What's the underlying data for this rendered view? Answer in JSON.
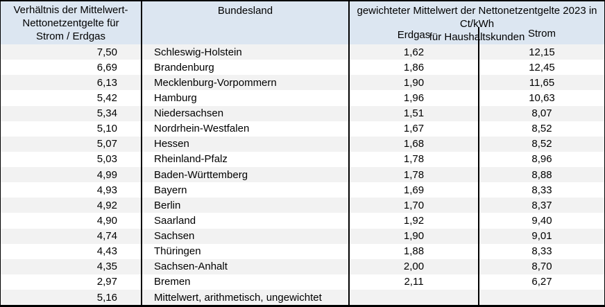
{
  "colors": {
    "header_bg": "#dce6f1",
    "stripe_bg": "#f2f2f2",
    "border": "#000000",
    "text": "#000000"
  },
  "header": {
    "ratio_lines": [
      "Verhältnis der Mittelwert-",
      "Nettonetzentgelte für",
      "Strom / Erdgas"
    ],
    "bundesland": "Bundesland",
    "weighted_lines": [
      "gewichteter Mittelwert der Nettonetzentgelte 2023 in Ct/kWh",
      "für Haushaltskunden"
    ],
    "erdgas": "Erdgas",
    "strom": "Strom"
  },
  "chart_data": {
    "type": "table",
    "title": "gewichteter Mittelwert der Nettonetzentgelte 2023 in Ct/kWh für Haushaltskunden",
    "columns": [
      "Verhältnis der Mittelwert-Nettonetzentgelte für Strom / Erdgas",
      "Bundesland",
      "Erdgas",
      "Strom"
    ],
    "column_group_header": "gewichteter Mittelwert der Nettonetzentgelte 2023 in Ct/kWh für Haushaltskunden",
    "rows": [
      [
        "7,50",
        "Schleswig-Holstein",
        "1,62",
        "12,15"
      ],
      [
        "6,69",
        "Brandenburg",
        "1,86",
        "12,45"
      ],
      [
        "6,13",
        "Mecklenburg-Vorpommern",
        "1,90",
        "11,65"
      ],
      [
        "5,42",
        "Hamburg",
        "1,96",
        "10,63"
      ],
      [
        "5,34",
        "Niedersachsen",
        "1,51",
        "8,07"
      ],
      [
        "5,10",
        "Nordrhein-Westfalen",
        "1,67",
        "8,52"
      ],
      [
        "5,07",
        "Hessen",
        "1,68",
        "8,52"
      ],
      [
        "5,03",
        "Rheinland-Pfalz",
        "1,78",
        "8,96"
      ],
      [
        "4,99",
        "Baden-Württemberg",
        "1,78",
        "8,88"
      ],
      [
        "4,93",
        "Bayern",
        "1,69",
        "8,33"
      ],
      [
        "4,92",
        "Berlin",
        "1,70",
        "8,37"
      ],
      [
        "4,90",
        "Saarland",
        "1,92",
        "9,40"
      ],
      [
        "4,74",
        "Sachsen",
        "1,90",
        "9,01"
      ],
      [
        "4,43",
        "Thüringen",
        "1,88",
        "8,33"
      ],
      [
        "4,35",
        "Sachsen-Anhalt",
        "2,00",
        "8,70"
      ],
      [
        "2,97",
        "Bremen",
        "2,11",
        "6,27"
      ],
      [
        "5,16",
        "Mittelwert, arithmetisch, ungewichtet",
        "",
        ""
      ]
    ]
  }
}
